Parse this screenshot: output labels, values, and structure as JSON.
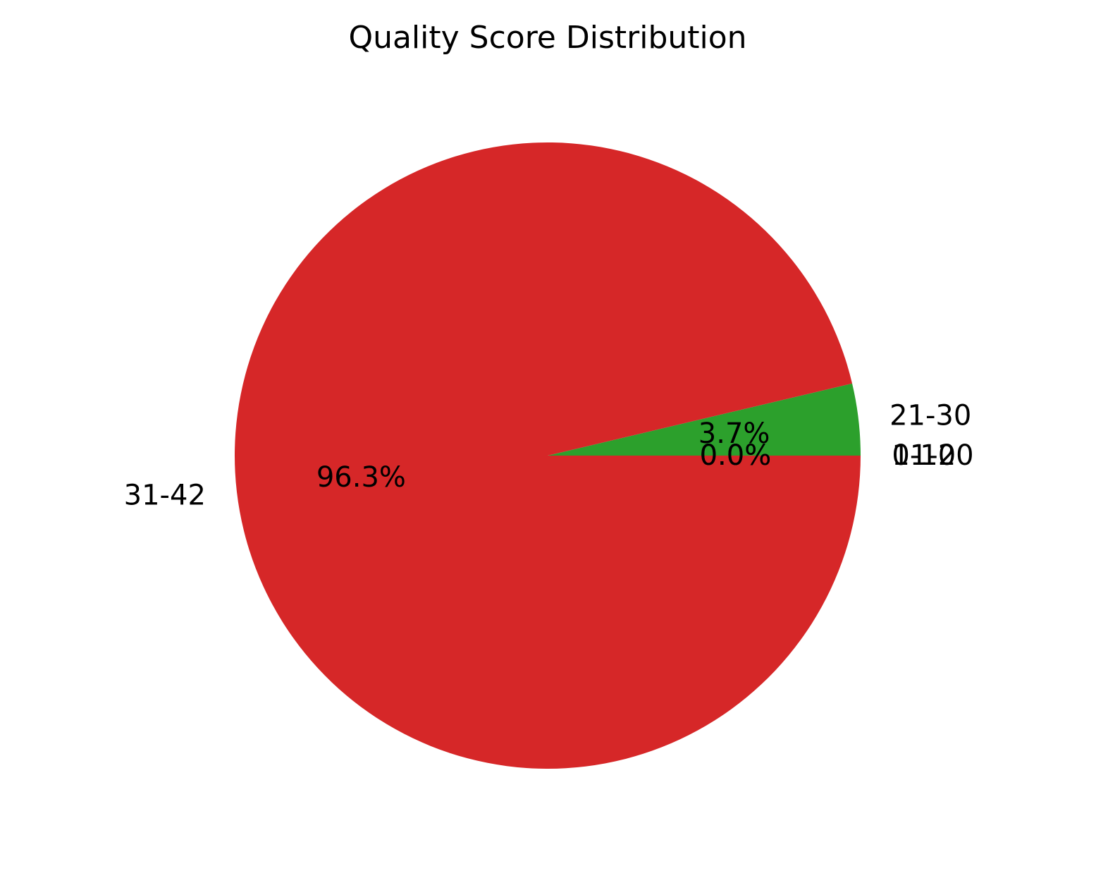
{
  "chart_data": {
    "type": "pie",
    "title": "Quality Score Distribution",
    "slices": [
      {
        "label": "0-10",
        "value": 0.0,
        "pct_label": "0.0%",
        "color": "#1f77b4"
      },
      {
        "label": "11-20",
        "value": 0.0,
        "pct_label": "0.0%",
        "color": "#ff7f0e"
      },
      {
        "label": "21-30",
        "value": 3.7,
        "pct_label": "3.7%",
        "color": "#2ca02c"
      },
      {
        "label": "31-42",
        "value": 96.3,
        "pct_label": "96.3%",
        "color": "#d62728"
      }
    ]
  }
}
